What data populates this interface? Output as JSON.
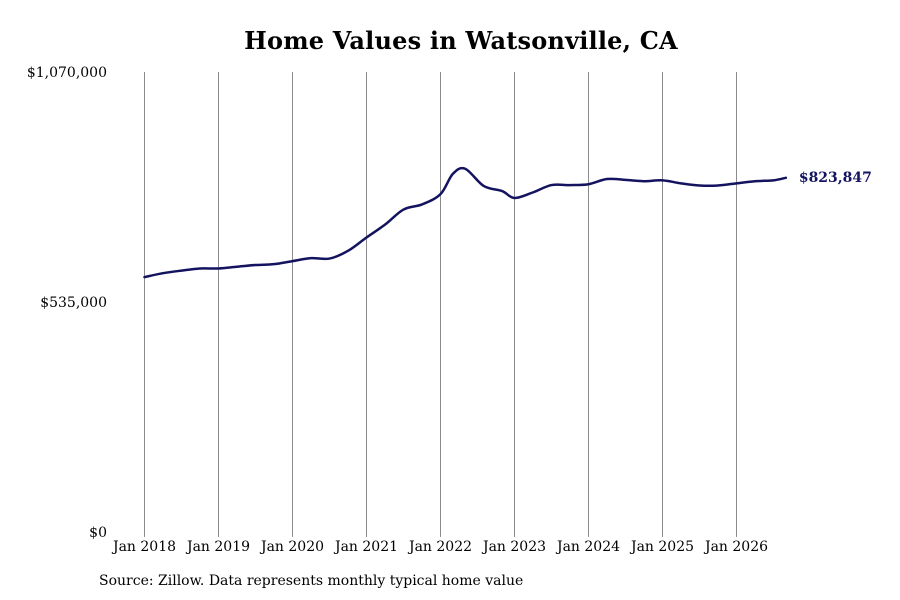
{
  "chart_data": {
    "type": "line",
    "title": "Home Values in Watsonville, CA",
    "xlabel": "",
    "ylabel": "",
    "ylim": [
      0,
      1070000
    ],
    "y_ticks": [
      0,
      535000,
      1070000
    ],
    "y_tick_labels": [
      "$0",
      "$535,000",
      "$1,070,000"
    ],
    "x_ticks": [
      "2018-01",
      "2019-01",
      "2020-01",
      "2021-01",
      "2022-01",
      "2023-01",
      "2024-01",
      "2025-01",
      "2026-01"
    ],
    "x_tick_labels": [
      "Jan 2018",
      "Jan 2019",
      "Jan 2020",
      "Jan 2021",
      "Jan 2022",
      "Jan 2023",
      "Jan 2024",
      "Jan 2025",
      "Jan 2026"
    ],
    "grid": "vertical lines at year ticks",
    "series": [
      {
        "color": "#13135f",
        "x": [
          "2018-01",
          "2018-04",
          "2018-07",
          "2018-10",
          "2019-01",
          "2019-04",
          "2019-07",
          "2019-10",
          "2020-01",
          "2020-04",
          "2020-07",
          "2020-10",
          "2021-01",
          "2021-04",
          "2021-07",
          "2021-10",
          "2022-01",
          "2022-03",
          "2022-05",
          "2022-08",
          "2022-11",
          "2023-01",
          "2023-04",
          "2023-07",
          "2023-10",
          "2024-01",
          "2024-04",
          "2024-07",
          "2024-10",
          "2025-01",
          "2025-04",
          "2025-07",
          "2025-10",
          "2026-01",
          "2026-04",
          "2026-07",
          "2026-09"
        ],
        "values": [
          593000,
          602000,
          608000,
          613000,
          613000,
          617000,
          621000,
          623000,
          630000,
          637000,
          636000,
          654000,
          685000,
          715000,
          750000,
          762000,
          786000,
          833000,
          845000,
          805000,
          793000,
          777000,
          790000,
          807000,
          807000,
          809000,
          821000,
          819000,
          816000,
          818000,
          811000,
          806000,
          806000,
          811000,
          816000,
          818000,
          823847
        ]
      }
    ],
    "end_label": "$823,847",
    "source": "Source: Zillow. Data represents monthly typical home value"
  }
}
